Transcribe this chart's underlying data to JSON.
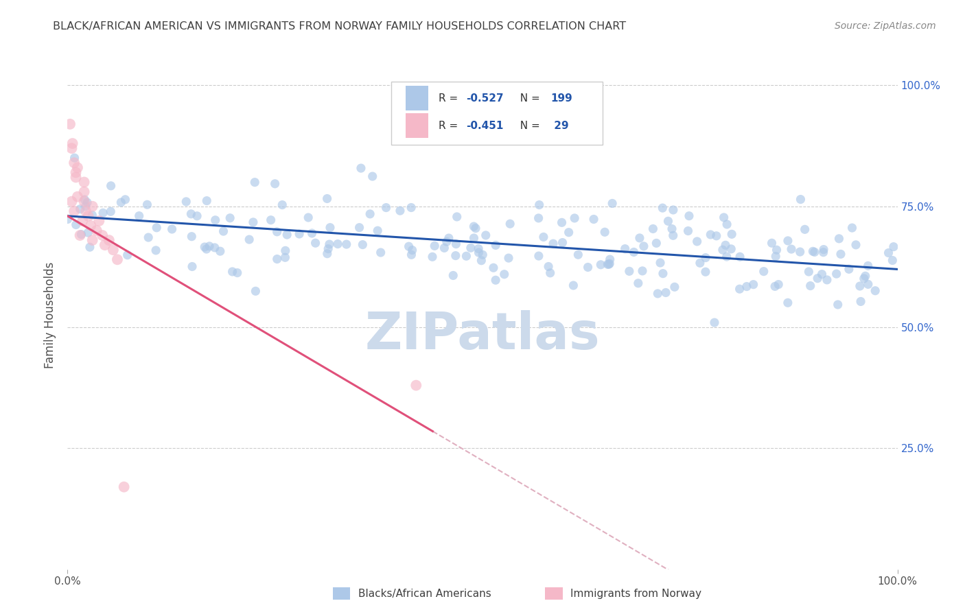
{
  "title": "BLACK/AFRICAN AMERICAN VS IMMIGRANTS FROM NORWAY FAMILY HOUSEHOLDS CORRELATION CHART",
  "source": "Source: ZipAtlas.com",
  "ylabel": "Family Households",
  "legend_blue_label": "Blacks/African Americans",
  "legend_pink_label": "Immigrants from Norway",
  "blue_color": "#adc8e8",
  "pink_color": "#f5b8c8",
  "blue_line_color": "#2255aa",
  "pink_line_color": "#e0507a",
  "dashed_line_color": "#e0b0c0",
  "grid_color": "#cccccc",
  "title_color": "#404040",
  "right_axis_color": "#3366cc",
  "R_color": "#2255aa",
  "blue_scatter_alpha": 0.65,
  "pink_scatter_alpha": 0.65,
  "blue_N": 199,
  "pink_N": 29,
  "blue_line_x": [
    0.0,
    1.0
  ],
  "blue_line_y": [
    0.73,
    0.62
  ],
  "pink_line_x": [
    0.0,
    0.44
  ],
  "pink_line_y": [
    0.73,
    0.285
  ],
  "dashed_line_x": [
    0.44,
    1.0
  ],
  "dashed_line_y": [
    0.285,
    -0.28
  ],
  "xlim": [
    0.0,
    1.0
  ],
  "ylim": [
    0.0,
    1.05
  ],
  "yticks": [
    0.25,
    0.5,
    0.75,
    1.0
  ],
  "ytick_labels": [
    "25.0%",
    "50.0%",
    "75.0%",
    "100.0%"
  ],
  "watermark": "ZIPatlas",
  "watermark_color": "#ccdaeb",
  "legend_R_blue": "-0.527",
  "legend_N_blue": "199",
  "legend_R_pink": "-0.451",
  "legend_N_pink": " 29"
}
